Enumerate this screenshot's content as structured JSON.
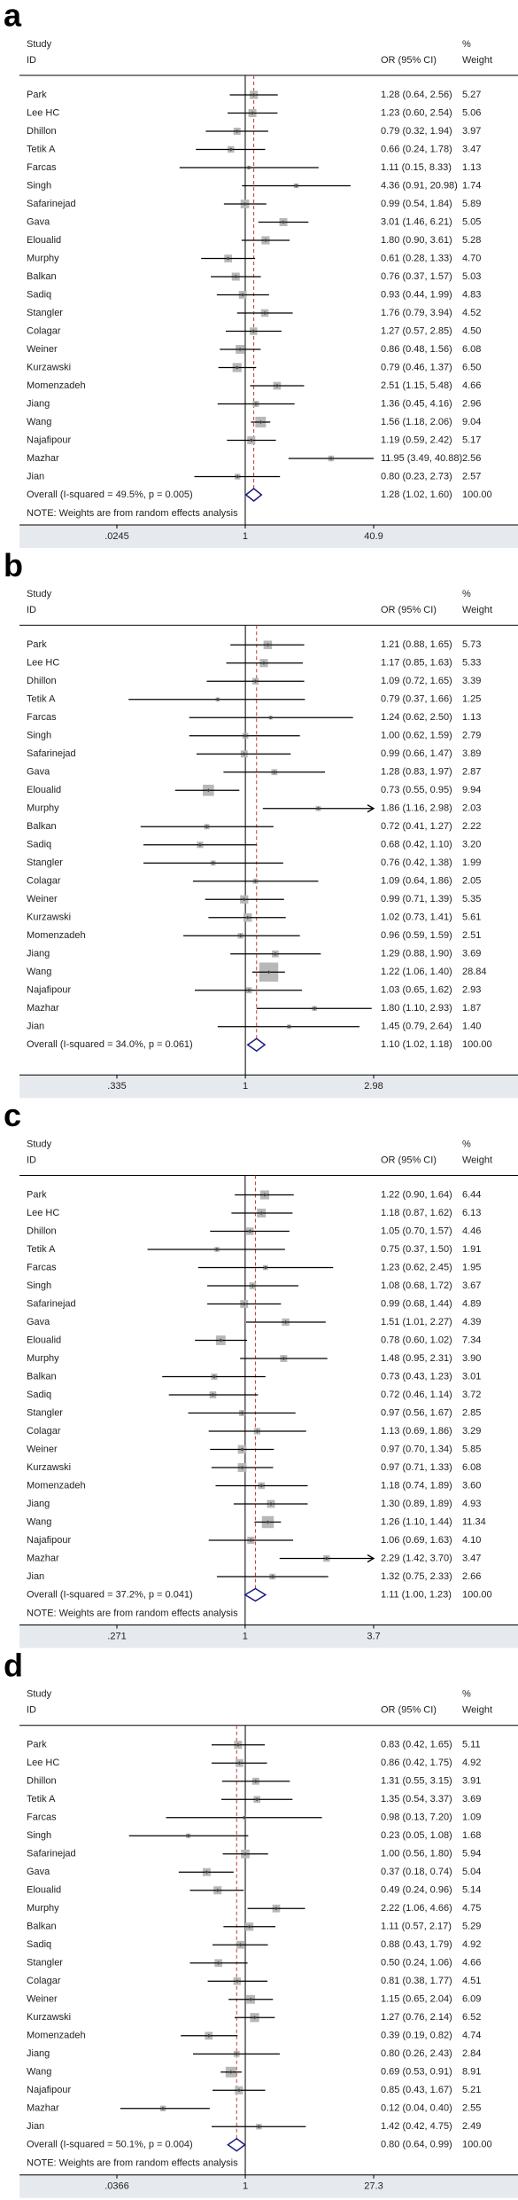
{
  "chart_data": [
    {
      "type": "forest",
      "panel_label": "a",
      "study_header": "Study",
      "id_header": "ID",
      "effect_header": "OR (95% CI)",
      "weight_header_top": "%",
      "weight_header": "Weight",
      "studies": [
        "Park",
        "Lee HC",
        "Dhillon",
        "Tetik A",
        "Farcas",
        "Singh",
        "Safarinejad",
        "Gava",
        "Eloualid",
        "Murphy",
        "Balkan",
        "Sadiq",
        "Stangler",
        "Colagar",
        "Weiner",
        "Kurzawski",
        "Momenzadeh",
        "Jiang",
        "Wang",
        "Najafipour",
        "Mazhar",
        "Jian"
      ],
      "or": [
        1.28,
        1.23,
        0.79,
        0.66,
        1.11,
        4.36,
        0.99,
        3.01,
        1.8,
        0.61,
        0.76,
        0.93,
        1.76,
        1.27,
        0.86,
        0.79,
        2.51,
        1.36,
        1.56,
        1.19,
        11.95,
        0.8
      ],
      "ci_low": [
        0.64,
        0.6,
        0.32,
        0.24,
        0.15,
        0.91,
        0.54,
        1.46,
        0.9,
        0.28,
        0.37,
        0.44,
        0.79,
        0.57,
        0.48,
        0.46,
        1.15,
        0.45,
        1.18,
        0.59,
        3.49,
        0.23
      ],
      "ci_high": [
        2.56,
        2.54,
        1.94,
        1.78,
        8.33,
        20.98,
        1.84,
        6.21,
        3.61,
        1.33,
        1.57,
        1.99,
        3.94,
        2.85,
        1.56,
        1.37,
        5.48,
        4.16,
        2.06,
        2.42,
        40.88,
        2.73
      ],
      "ci_labels": [
        "1.28 (0.64, 2.56)",
        "1.23 (0.60, 2.54)",
        "0.79 (0.32, 1.94)",
        "0.66 (0.24, 1.78)",
        "1.11 (0.15, 8.33)",
        "4.36 (0.91, 20.98)",
        "0.99 (0.54, 1.84)",
        "3.01 (1.46, 6.21)",
        "1.80 (0.90, 3.61)",
        "0.61 (0.28, 1.33)",
        "0.76 (0.37, 1.57)",
        "0.93 (0.44, 1.99)",
        "1.76 (0.79, 3.94)",
        "1.27 (0.57, 2.85)",
        "0.86 (0.48, 1.56)",
        "0.79 (0.46, 1.37)",
        "2.51 (1.15, 5.48)",
        "1.36 (0.45, 4.16)",
        "1.56 (1.18, 2.06)",
        "1.19 (0.59, 2.42)",
        "11.95 (3.49, 40.88)",
        "0.80 (0.23, 2.73)"
      ],
      "weights": [
        5.27,
        5.06,
        3.97,
        3.47,
        1.13,
        1.74,
        5.89,
        5.05,
        5.28,
        4.7,
        5.03,
        4.83,
        4.52,
        4.5,
        6.08,
        6.5,
        4.66,
        2.96,
        9.04,
        5.17,
        2.56,
        2.57
      ],
      "weight_labels": [
        "5.27",
        "5.06",
        "3.97",
        "3.47",
        "1.13",
        "1.74",
        "5.89",
        "5.05",
        "5.28",
        "4.70",
        "5.03",
        "4.83",
        "4.52",
        "4.50",
        "6.08",
        "6.50",
        "4.66",
        "2.96",
        "9.04",
        "5.17",
        "2.56",
        "2.57"
      ],
      "overall": {
        "label": "Overall  (I-squared = 49.5%, p = 0.005)",
        "or": 1.28,
        "ci_low": 1.02,
        "ci_high": 1.6,
        "ci_label": "1.28 (1.02, 1.60)",
        "weight_label": "100.00"
      },
      "note": "NOTE: Weights are from random effects analysis",
      "xlim": [
        0.0245,
        40.9
      ],
      "xticks": [
        {
          "value": 0.0245,
          "label": ".0245"
        },
        1,
        40.9
      ],
      "log_scale": true,
      "reference_line": 1,
      "box_color": "#b8b8b8",
      "diamond_color": "#1c1c80",
      "overall_line_color": "#c0392b"
    },
    {
      "type": "forest",
      "panel_label": "b",
      "study_header": "Study",
      "id_header": "ID",
      "effect_header": "OR (95% CI)",
      "weight_header_top": "%",
      "weight_header": "Weight",
      "studies": [
        "Park",
        "Lee HC",
        "Dhillon",
        "Tetik A",
        "Farcas",
        "Singh",
        "Safarinejad",
        "Gava",
        "Eloualid",
        "Murphy",
        "Balkan",
        "Sadiq",
        "Stangler",
        "Colagar",
        "Weiner",
        "Kurzawski",
        "Momenzadeh",
        "Jiang",
        "Wang",
        "Najafipour",
        "Mazhar",
        "Jian"
      ],
      "or": [
        1.21,
        1.17,
        1.09,
        0.79,
        1.24,
        1.0,
        0.99,
        1.28,
        0.73,
        1.86,
        0.72,
        0.68,
        0.76,
        1.09,
        0.99,
        1.02,
        0.96,
        1.29,
        1.22,
        1.03,
        1.8,
        1.45
      ],
      "ci_low": [
        0.88,
        0.85,
        0.72,
        0.37,
        0.62,
        0.62,
        0.66,
        0.83,
        0.55,
        1.16,
        0.41,
        0.42,
        0.42,
        0.64,
        0.71,
        0.73,
        0.59,
        0.88,
        1.06,
        0.65,
        1.1,
        0.79
      ],
      "ci_high": [
        1.65,
        1.63,
        1.65,
        1.66,
        2.5,
        1.59,
        1.47,
        1.97,
        0.95,
        2.98,
        1.27,
        1.1,
        1.38,
        1.86,
        1.39,
        1.41,
        1.59,
        1.9,
        1.4,
        1.62,
        2.93,
        2.64
      ],
      "ci_labels": [
        "1.21 (0.88, 1.65)",
        "1.17 (0.85, 1.63)",
        "1.09 (0.72, 1.65)",
        "0.79 (0.37, 1.66)",
        "1.24 (0.62, 2.50)",
        "1.00 (0.62, 1.59)",
        "0.99 (0.66, 1.47)",
        "1.28 (0.83, 1.97)",
        "0.73 (0.55, 0.95)",
        "1.86 (1.16, 2.98)",
        "0.72 (0.41, 1.27)",
        "0.68 (0.42, 1.10)",
        "0.76 (0.42, 1.38)",
        "1.09 (0.64, 1.86)",
        "0.99 (0.71, 1.39)",
        "1.02 (0.73, 1.41)",
        "0.96 (0.59, 1.59)",
        "1.29 (0.88, 1.90)",
        "1.22 (1.06, 1.40)",
        "1.03 (0.65, 1.62)",
        "1.80 (1.10, 2.93)",
        "1.45 (0.79, 2.64)"
      ],
      "weights": [
        5.73,
        5.33,
        3.39,
        1.25,
        1.13,
        2.79,
        3.89,
        2.87,
        9.94,
        2.03,
        2.22,
        3.2,
        1.99,
        2.05,
        5.35,
        5.61,
        2.51,
        3.69,
        28.84,
        2.93,
        1.87,
        1.4
      ],
      "weight_labels": [
        "5.73",
        "5.33",
        "3.39",
        "1.25",
        "1.13",
        "2.79",
        "3.89",
        "2.87",
        "9.94",
        "2.03",
        "2.22",
        "3.20",
        "1.99",
        "2.05",
        "5.35",
        "5.61",
        "2.51",
        "3.69",
        "28.84",
        "2.93",
        "1.87",
        "1.40"
      ],
      "overall": {
        "label": "Overall  (I-squared = 34.0%, p = 0.061)",
        "or": 1.1,
        "ci_low": 1.02,
        "ci_high": 1.18,
        "ci_label": "1.10 (1.02, 1.18)",
        "weight_label": "100.00"
      },
      "xlim": [
        0.335,
        2.98
      ],
      "xticks": [
        {
          "value": 0.335,
          "label": ".335"
        },
        1,
        2.98
      ],
      "log_scale": true,
      "reference_line": 1,
      "box_color": "#b8b8b8",
      "diamond_color": "#1c1c80",
      "overall_line_color": "#c0392b"
    },
    {
      "type": "forest",
      "panel_label": "c",
      "study_header": "Study",
      "id_header": "ID",
      "effect_header": "OR (95% CI)",
      "weight_header_top": "%",
      "weight_header": "Weight",
      "studies": [
        "Park",
        "Lee HC",
        "Dhillon",
        "Tetik A",
        "Farcas",
        "Singh",
        "Safarinejad",
        "Gava",
        "Eloualid",
        "Murphy",
        "Balkan",
        "Sadiq",
        "Stangler",
        "Colagar",
        "Weiner",
        "Kurzawski",
        "Momenzadeh",
        "Jiang",
        "Wang",
        "Najafipour",
        "Mazhar",
        "Jian"
      ],
      "or": [
        1.22,
        1.18,
        1.05,
        0.75,
        1.23,
        1.08,
        0.99,
        1.51,
        0.78,
        1.48,
        0.73,
        0.72,
        0.97,
        1.13,
        0.97,
        0.97,
        1.18,
        1.3,
        1.26,
        1.06,
        2.29,
        1.32
      ],
      "ci_low": [
        0.9,
        0.87,
        0.7,
        0.37,
        0.62,
        0.68,
        0.68,
        1.01,
        0.6,
        0.95,
        0.43,
        0.46,
        0.56,
        0.69,
        0.7,
        0.71,
        0.74,
        0.89,
        1.1,
        0.69,
        1.42,
        0.75
      ],
      "ci_high": [
        1.64,
        1.62,
        1.57,
        1.5,
        2.45,
        1.72,
        1.44,
        2.27,
        1.02,
        2.31,
        1.23,
        1.14,
        1.67,
        1.86,
        1.34,
        1.33,
        1.89,
        1.89,
        1.44,
        1.63,
        3.7,
        2.33
      ],
      "ci_labels": [
        "1.22 (0.90, 1.64)",
        "1.18 (0.87, 1.62)",
        "1.05 (0.70, 1.57)",
        "0.75 (0.37, 1.50)",
        "1.23 (0.62, 2.45)",
        "1.08 (0.68, 1.72)",
        "0.99 (0.68, 1.44)",
        "1.51 (1.01, 2.27)",
        "0.78 (0.60, 1.02)",
        "1.48 (0.95, 2.31)",
        "0.73 (0.43, 1.23)",
        "0.72 (0.46, 1.14)",
        "0.97 (0.56, 1.67)",
        "1.13 (0.69, 1.86)",
        "0.97 (0.70, 1.34)",
        "0.97 (0.71, 1.33)",
        "1.18 (0.74, 1.89)",
        "1.30 (0.89, 1.89)",
        "1.26 (1.10, 1.44)",
        "1.06 (0.69, 1.63)",
        "2.29 (1.42, 3.70)",
        "1.32 (0.75, 2.33)"
      ],
      "weights": [
        6.44,
        6.13,
        4.46,
        1.91,
        1.95,
        3.67,
        4.89,
        4.39,
        7.34,
        3.9,
        3.01,
        3.72,
        2.85,
        3.29,
        5.85,
        6.08,
        3.6,
        4.93,
        11.34,
        4.1,
        3.47,
        2.66
      ],
      "weight_labels": [
        "6.44",
        "6.13",
        "4.46",
        "1.91",
        "1.95",
        "3.67",
        "4.89",
        "4.39",
        "7.34",
        "3.90",
        "3.01",
        "3.72",
        "2.85",
        "3.29",
        "5.85",
        "6.08",
        "3.60",
        "4.93",
        "11.34",
        "4.10",
        "3.47",
        "2.66"
      ],
      "overall": {
        "label": "Overall  (I-squared = 37.2%, p = 0.041)",
        "or": 1.11,
        "ci_low": 1.0,
        "ci_high": 1.23,
        "ci_label": "1.11 (1.00, 1.23)",
        "weight_label": "100.00"
      },
      "note": "NOTE: Weights are from random effects analysis",
      "xlim": [
        0.271,
        3.7
      ],
      "xticks": [
        {
          "value": 0.271,
          "label": ".271"
        },
        1,
        3.7
      ],
      "log_scale": true,
      "reference_line": 1,
      "box_color": "#b8b8b8",
      "diamond_color": "#1c1c80",
      "overall_line_color": "#c0392b"
    },
    {
      "type": "forest",
      "panel_label": "d",
      "study_header": "Study",
      "id_header": "ID",
      "effect_header": "OR (95% CI)",
      "weight_header_top": "%",
      "weight_header": "Weight",
      "studies": [
        "Park",
        "Lee HC",
        "Dhillon",
        "Tetik A",
        "Farcas",
        "Singh",
        "Safarinejad",
        "Gava",
        "Eloualid",
        "Murphy",
        "Balkan",
        "Sadiq",
        "Stangler",
        "Colagar",
        "Weiner",
        "Kurzawski",
        "Momenzadeh",
        "Jiang",
        "Wang",
        "Najafipour",
        "Mazhar",
        "Jian"
      ],
      "or": [
        0.83,
        0.86,
        1.31,
        1.35,
        0.98,
        0.23,
        1.0,
        0.37,
        0.49,
        2.22,
        1.11,
        0.88,
        0.5,
        0.81,
        1.15,
        1.27,
        0.39,
        0.8,
        0.69,
        0.85,
        0.12,
        1.42
      ],
      "ci_low": [
        0.42,
        0.42,
        0.55,
        0.54,
        0.13,
        0.05,
        0.56,
        0.18,
        0.24,
        1.06,
        0.57,
        0.43,
        0.24,
        0.38,
        0.65,
        0.76,
        0.19,
        0.26,
        0.53,
        0.43,
        0.04,
        0.42
      ],
      "ci_high": [
        1.65,
        1.75,
        3.15,
        3.37,
        7.2,
        1.08,
        1.8,
        0.74,
        0.96,
        4.66,
        2.17,
        1.79,
        1.06,
        1.77,
        2.04,
        2.14,
        0.82,
        2.43,
        0.91,
        1.67,
        0.4,
        4.75
      ],
      "ci_labels": [
        "0.83 (0.42, 1.65)",
        "0.86 (0.42, 1.75)",
        "1.31 (0.55, 3.15)",
        "1.35 (0.54, 3.37)",
        "0.98 (0.13, 7.20)",
        "0.23 (0.05, 1.08)",
        "1.00 (0.56, 1.80)",
        "0.37 (0.18, 0.74)",
        "0.49 (0.24, 0.96)",
        "2.22 (1.06, 4.66)",
        "1.11 (0.57, 2.17)",
        "0.88 (0.43, 1.79)",
        "0.50 (0.24, 1.06)",
        "0.81 (0.38, 1.77)",
        "1.15 (0.65, 2.04)",
        "1.27 (0.76, 2.14)",
        "0.39 (0.19, 0.82)",
        "0.80 (0.26, 2.43)",
        "0.69 (0.53, 0.91)",
        "0.85 (0.43, 1.67)",
        "0.12 (0.04, 0.40)",
        "1.42 (0.42, 4.75)"
      ],
      "weights": [
        5.11,
        4.92,
        3.91,
        3.69,
        1.09,
        1.68,
        5.94,
        5.04,
        5.14,
        4.75,
        5.29,
        4.92,
        4.66,
        4.51,
        6.09,
        6.52,
        4.74,
        2.84,
        8.91,
        5.21,
        2.55,
        2.49
      ],
      "weight_labels": [
        "5.11",
        "4.92",
        "3.91",
        "3.69",
        "1.09",
        "1.68",
        "5.94",
        "5.04",
        "5.14",
        "4.75",
        "5.29",
        "4.92",
        "4.66",
        "4.51",
        "6.09",
        "6.52",
        "4.74",
        "2.84",
        "8.91",
        "5.21",
        "2.55",
        "2.49"
      ],
      "overall": {
        "label": "Overall  (I-squared = 50.1%, p = 0.004)",
        "or": 0.8,
        "ci_low": 0.64,
        "ci_high": 0.99,
        "ci_label": "0.80 (0.64, 0.99)",
        "weight_label": "100.00"
      },
      "note": "NOTE: Weights are from random effects analysis",
      "xlim": [
        0.0366,
        27.3
      ],
      "xticks": [
        {
          "value": 0.0366,
          "label": ".0366"
        },
        1,
        27.3
      ],
      "log_scale": true,
      "reference_line": 1,
      "box_color": "#b8b8b8",
      "diamond_color": "#1c1c80",
      "overall_line_color": "#c0392b"
    }
  ]
}
